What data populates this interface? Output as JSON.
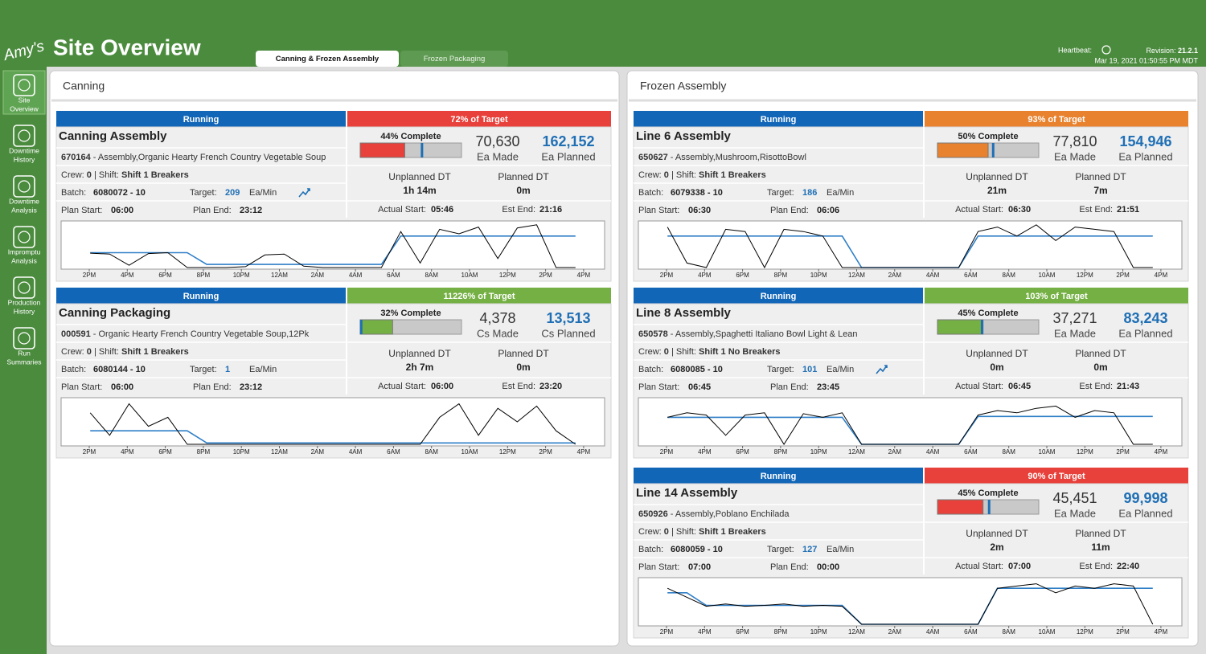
{
  "header": {
    "logo": "Amy's",
    "title": "Site Overview",
    "tabs": [
      {
        "label": "Canning & Frozen Assembly",
        "active": true
      },
      {
        "label": "Frozen Packaging",
        "active": false
      }
    ],
    "heartbeat_label": "Heartbeat:",
    "revision_label": "Revision:",
    "revision": "21.2.1",
    "timestamp": "Mar 19, 2021 01:50:55 PM MDT"
  },
  "nav": [
    {
      "lines": [
        "Site",
        "Overview"
      ],
      "active": true
    },
    {
      "lines": [
        "Downtime",
        "History"
      ],
      "active": false
    },
    {
      "lines": [
        "Downtime",
        "Analysis"
      ],
      "active": false
    },
    {
      "lines": [
        "Impromptu",
        "Analysis"
      ],
      "active": false
    },
    {
      "lines": [
        "Production",
        "History"
      ],
      "active": false
    },
    {
      "lines": [
        "Run",
        "Summaries"
      ],
      "active": false
    }
  ],
  "labels": {
    "crew": "Crew:",
    "shift": " | Shift:",
    "batch": "Batch:",
    "target": "Target:",
    "plan_start": "Plan Start:",
    "plan_end": "Plan End:",
    "unplanned_dt": "Unplanned DT",
    "planned_dt": "Planned DT",
    "actual_start": "Actual Start:",
    "est_end": "Est End:"
  },
  "time_labels": [
    "2PM",
    "4PM",
    "6PM",
    "8PM",
    "10PM",
    "12AM",
    "2AM",
    "4AM",
    "6AM",
    "8AM",
    "10AM",
    "12PM",
    "2PM",
    "4PM"
  ],
  "panels": [
    {
      "title": "Canning",
      "cards": [
        {
          "status": "Running",
          "target": {
            "value": 72,
            "label": "72% of Target"
          },
          "color": "#e8403a",
          "name": "Canning Assembly",
          "order": "670164",
          "description": " - Assembly,Organic Hearty French Country Vegetable Soup",
          "crew": "0",
          "shift": "Shift 1 Breakers",
          "batch": "6080072 - 10",
          "target_rate": "209",
          "rate_unit": "Ea/Min",
          "trend_icon": true,
          "plan_start": "06:00",
          "plan_end": "23:12",
          "complete": {
            "value": 44,
            "label": "44% Complete"
          },
          "expected": 61,
          "made": "70,630",
          "made_unit": "Ea Made",
          "planned": "162,152",
          "planned_unit": "Ea Planned",
          "unplanned_dt": "1h 14m",
          "planned_dt": "0m",
          "actual_start": "05:46",
          "est_end": "21:16",
          "trend": {
            "target": [
              null,
              33,
              33,
              33,
              33,
              33,
              33,
              7,
              7,
              7,
              7,
              7,
              7,
              7,
              7,
              7,
              7,
              70,
              70,
              70,
              70,
              70,
              70,
              70,
              70,
              70,
              70,
              null
            ],
            "actual": [
              null,
              32,
              30,
              5,
              31,
              33,
              0,
              0,
              0,
              2,
              28,
              30,
              3,
              0,
              0,
              0,
              0,
              80,
              10,
              85,
              75,
              90,
              20,
              88,
              95,
              0,
              0,
              null
            ]
          }
        },
        {
          "status": "Running",
          "target": {
            "value": 11226,
            "label": "11226% of Target"
          },
          "color": "#74b043",
          "name": "Canning Packaging",
          "order": "000591",
          "description": " - Organic Hearty French Country Vegetable Soup,12Pk",
          "crew": "0",
          "shift": "Shift 1 Breakers",
          "batch": "6080144 - 10",
          "target_rate": "1",
          "rate_unit": "Ea/Min",
          "trend_icon": false,
          "plan_start": "06:00",
          "plan_end": "23:12",
          "complete": {
            "value": 32,
            "label": "32% Complete"
          },
          "expected": 1,
          "made": "4,378",
          "made_unit": "Cs Made",
          "planned": "13,513",
          "planned_unit": "Cs Planned",
          "unplanned_dt": "2h 7m",
          "planned_dt": "0m",
          "actual_start": "06:00",
          "est_end": "23:20",
          "trend": {
            "target": [
              null,
              30,
              30,
              30,
              30,
              30,
              30,
              3,
              3,
              3,
              3,
              3,
              3,
              3,
              3,
              3,
              3,
              3,
              3,
              3,
              3,
              3,
              3,
              3,
              3,
              3,
              3,
              null
            ],
            "actual": [
              null,
              70,
              20,
              90,
              40,
              60,
              0,
              0,
              0,
              0,
              0,
              0,
              0,
              0,
              0,
              0,
              0,
              0,
              0,
              60,
              90,
              20,
              80,
              50,
              85,
              30,
              0,
              null
            ]
          }
        }
      ]
    },
    {
      "title": "Frozen Assembly",
      "cards": [
        {
          "status": "Running",
          "target": {
            "value": 93,
            "label": "93% of Target"
          },
          "color": "#e8822e",
          "name": "Line 6 Assembly",
          "order": "650627",
          "description": " - Assembly,Mushroom,RisottoBowl",
          "crew": "0",
          "shift": "Shift 1 Breakers",
          "batch": "6079338 - 10",
          "target_rate": "186",
          "rate_unit": "Ea/Min",
          "trend_icon": false,
          "plan_start": "06:30",
          "plan_end": "06:06",
          "complete": {
            "value": 50,
            "label": "50% Complete"
          },
          "expected": 55,
          "made": "77,810",
          "made_unit": "Ea Made",
          "planned": "154,946",
          "planned_unit": "Ea Planned",
          "unplanned_dt": "21m",
          "planned_dt": "7m",
          "actual_start": "06:30",
          "est_end": "21:51",
          "trend": {
            "target": [
              null,
              70,
              70,
              70,
              70,
              70,
              70,
              70,
              70,
              70,
              70,
              0,
              0,
              0,
              0,
              0,
              0,
              70,
              70,
              70,
              70,
              70,
              70,
              70,
              70,
              70,
              70,
              null
            ],
            "actual": [
              null,
              90,
              10,
              0,
              85,
              80,
              0,
              85,
              80,
              70,
              0,
              0,
              0,
              0,
              0,
              0,
              0,
              80,
              90,
              70,
              95,
              60,
              90,
              85,
              80,
              0,
              0,
              null
            ]
          }
        },
        {
          "status": "Running",
          "target": {
            "value": 103,
            "label": "103% of Target"
          },
          "color": "#74b043",
          "name": "Line 8 Assembly",
          "order": "650578",
          "description": " - Assembly,Spaghetti Italiano Bowl Light & Lean",
          "crew": "0",
          "shift": "Shift 1 No Breakers",
          "batch": "6080085 - 10",
          "target_rate": "101",
          "rate_unit": "Ea/Min",
          "trend_icon": true,
          "plan_start": "06:45",
          "plan_end": "23:45",
          "complete": {
            "value": 45,
            "label": "45% Complete"
          },
          "expected": 44,
          "made": "37,271",
          "made_unit": "Ea Made",
          "planned": "83,243",
          "planned_unit": "Ea Planned",
          "unplanned_dt": "0m",
          "planned_dt": "0m",
          "actual_start": "06:45",
          "est_end": "21:43",
          "trend": {
            "target": [
              null,
              60,
              60,
              60,
              60,
              60,
              60,
              60,
              60,
              60,
              60,
              0,
              0,
              0,
              0,
              0,
              0,
              62,
              62,
              62,
              62,
              62,
              62,
              62,
              62,
              62,
              62,
              null
            ],
            "actual": [
              null,
              60,
              70,
              65,
              20,
              65,
              70,
              0,
              68,
              60,
              70,
              0,
              0,
              0,
              0,
              0,
              0,
              65,
              75,
              70,
              80,
              85,
              60,
              75,
              70,
              0,
              0,
              null
            ]
          }
        },
        {
          "status": "Running",
          "target": {
            "value": 90,
            "label": "90% of Target"
          },
          "color": "#e8403a",
          "name": "Line 14 Assembly",
          "order": "650926",
          "description": " - Assembly,Poblano Enchilada",
          "crew": "0",
          "shift": "Shift 1 Breakers",
          "batch": "6080059 - 10",
          "target_rate": "127",
          "rate_unit": "Ea/Min",
          "trend_icon": false,
          "plan_start": "07:00",
          "plan_end": "00:00",
          "complete": {
            "value": 45,
            "label": "45% Complete"
          },
          "expected": 51,
          "made": "45,451",
          "made_unit": "Ea Made",
          "planned": "99,998",
          "planned_unit": "Ea Planned",
          "unplanned_dt": "2m",
          "planned_dt": "11m",
          "actual_start": "07:00",
          "est_end": "22:40",
          "trend": {
            "target": [
              null,
              70,
              70,
              42,
              42,
              42,
              42,
              42,
              42,
              42,
              42,
              0,
              0,
              0,
              0,
              0,
              0,
              0,
              80,
              80,
              80,
              80,
              80,
              80,
              80,
              80,
              80,
              null
            ],
            "actual": [
              null,
              80,
              60,
              40,
              45,
              40,
              42,
              45,
              40,
              42,
              40,
              0,
              0,
              0,
              0,
              0,
              0,
              0,
              80,
              85,
              90,
              70,
              85,
              80,
              90,
              85,
              0,
              null
            ]
          }
        }
      ]
    }
  ]
}
